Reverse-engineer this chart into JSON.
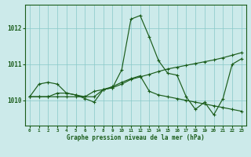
{
  "bg_color": "#cceaea",
  "grid_color": "#88c8c8",
  "line_color": "#1a5c1a",
  "text_color": "#1a5c1a",
  "xlabel": "Graphe pression niveau de la mer (hPa)",
  "ylim": [
    1009.3,
    1012.65
  ],
  "xlim": [
    -0.5,
    23.5
  ],
  "yticks": [
    1010,
    1011,
    1012
  ],
  "xticks": [
    0,
    1,
    2,
    3,
    4,
    5,
    6,
    7,
    8,
    9,
    10,
    11,
    12,
    13,
    14,
    15,
    16,
    17,
    18,
    19,
    20,
    21,
    22,
    23
  ],
  "line1": [
    1010.1,
    1010.45,
    1010.5,
    1010.45,
    1010.2,
    1010.15,
    1010.05,
    1009.95,
    1010.3,
    1010.35,
    1010.85,
    1012.25,
    1012.35,
    1011.75,
    1011.1,
    1010.75,
    1010.7,
    1010.1,
    1009.75,
    1009.95,
    1009.6,
    1010.05,
    1011.0,
    1011.15
  ],
  "line2": [
    1010.1,
    1010.1,
    1010.1,
    1010.1,
    1010.1,
    1010.1,
    1010.1,
    1010.25,
    1010.3,
    1010.35,
    1010.45,
    1010.58,
    1010.65,
    1010.72,
    1010.8,
    1010.87,
    1010.92,
    1010.97,
    1011.02,
    1011.07,
    1011.12,
    1011.18,
    1011.25,
    1011.32
  ],
  "line3": [
    1010.1,
    1010.1,
    1010.1,
    1010.2,
    1010.2,
    1010.15,
    1010.1,
    1010.1,
    1010.3,
    1010.38,
    1010.5,
    1010.6,
    1010.68,
    1010.25,
    1010.15,
    1010.1,
    1010.05,
    1010.0,
    1009.95,
    1009.9,
    1009.85,
    1009.8,
    1009.75,
    1009.7
  ]
}
